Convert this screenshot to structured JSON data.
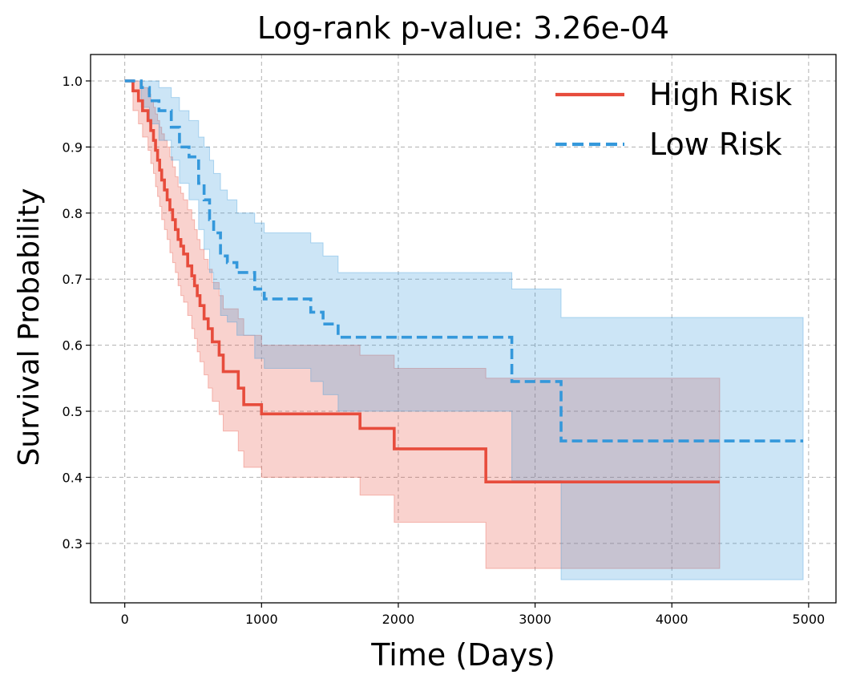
{
  "chart_data": {
    "type": "line",
    "title": "Log-rank p-value: 3.26e-04",
    "xlabel": "Time (Days)",
    "ylabel": "Survival Probability",
    "xlim": [
      -250,
      5200
    ],
    "ylim": [
      0.21,
      1.04
    ],
    "xticks": [
      0,
      1000,
      2000,
      3000,
      4000,
      5000
    ],
    "yticks": [
      0.3,
      0.4,
      0.5,
      0.6,
      0.7,
      0.8,
      0.9,
      1.0
    ],
    "xtick_labels": [
      "0",
      "1000",
      "2000",
      "3000",
      "4000",
      "5000"
    ],
    "ytick_labels": [
      "0.3",
      "0.4",
      "0.5",
      "0.6",
      "0.7",
      "0.8",
      "0.9",
      "1.0"
    ],
    "grid": true,
    "legend_position": "top-right",
    "series": [
      {
        "name": "High Risk",
        "color": "#e74c3c",
        "dash": "solid",
        "x": [
          0,
          60,
          100,
          130,
          170,
          190,
          210,
          225,
          240,
          255,
          270,
          290,
          310,
          330,
          350,
          370,
          390,
          410,
          430,
          460,
          490,
          510,
          530,
          550,
          580,
          610,
          640,
          690,
          720,
          830,
          870,
          1000,
          1720,
          1970,
          2640,
          4350
        ],
        "y": [
          1.0,
          0.985,
          0.97,
          0.955,
          0.94,
          0.925,
          0.91,
          0.895,
          0.88,
          0.865,
          0.85,
          0.835,
          0.82,
          0.805,
          0.79,
          0.775,
          0.76,
          0.75,
          0.738,
          0.72,
          0.705,
          0.69,
          0.675,
          0.66,
          0.64,
          0.625,
          0.605,
          0.585,
          0.56,
          0.535,
          0.51,
          0.496,
          0.474,
          0.443,
          0.393,
          0.393
        ],
        "ci_upper": [
          1.0,
          1.0,
          1.0,
          0.99,
          0.98,
          0.97,
          0.96,
          0.95,
          0.94,
          0.93,
          0.92,
          0.91,
          0.9,
          0.885,
          0.87,
          0.855,
          0.84,
          0.83,
          0.82,
          0.805,
          0.79,
          0.775,
          0.76,
          0.745,
          0.73,
          0.715,
          0.695,
          0.675,
          0.655,
          0.64,
          0.615,
          0.6,
          0.585,
          0.565,
          0.55,
          0.522
        ],
        "ci_lower": [
          1.0,
          0.955,
          0.935,
          0.915,
          0.895,
          0.875,
          0.86,
          0.84,
          0.825,
          0.81,
          0.79,
          0.775,
          0.76,
          0.74,
          0.725,
          0.71,
          0.69,
          0.675,
          0.665,
          0.645,
          0.625,
          0.61,
          0.59,
          0.575,
          0.555,
          0.535,
          0.515,
          0.495,
          0.47,
          0.44,
          0.415,
          0.4,
          0.373,
          0.332,
          0.262,
          0.262
        ]
      },
      {
        "name": "Low Risk",
        "color": "#3498db",
        "dash": "dashed",
        "x": [
          0,
          120,
          180,
          250,
          340,
          400,
          470,
          540,
          580,
          620,
          650,
          700,
          750,
          820,
          950,
          1020,
          1360,
          1450,
          1560,
          2830,
          3190,
          4960
        ],
        "y": [
          1.0,
          0.99,
          0.97,
          0.955,
          0.93,
          0.9,
          0.885,
          0.845,
          0.82,
          0.79,
          0.77,
          0.735,
          0.725,
          0.71,
          0.685,
          0.67,
          0.65,
          0.632,
          0.612,
          0.545,
          0.455,
          0.455
        ],
        "ci_upper": [
          1.0,
          1.0,
          1.0,
          0.99,
          0.975,
          0.955,
          0.94,
          0.915,
          0.9,
          0.88,
          0.86,
          0.835,
          0.82,
          0.8,
          0.785,
          0.77,
          0.755,
          0.735,
          0.71,
          0.685,
          0.642,
          0.642
        ],
        "ci_lower": [
          1.0,
          0.96,
          0.935,
          0.91,
          0.88,
          0.845,
          0.82,
          0.775,
          0.745,
          0.71,
          0.685,
          0.645,
          0.635,
          0.615,
          0.58,
          0.565,
          0.545,
          0.525,
          0.5,
          0.395,
          0.245,
          0.245
        ]
      }
    ]
  }
}
